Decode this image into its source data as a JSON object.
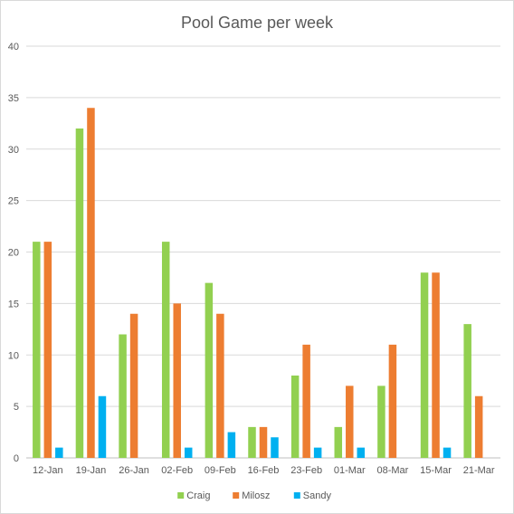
{
  "chart_data": {
    "type": "bar",
    "title": "Pool Game per week",
    "xlabel": "",
    "ylabel": "",
    "categories": [
      "12-Jan",
      "19-Jan",
      "26-Jan",
      "02-Feb",
      "09-Feb",
      "16-Feb",
      "23-Feb",
      "01-Mar",
      "08-Mar",
      "15-Mar",
      "21-Mar"
    ],
    "series": [
      {
        "name": "Craig",
        "color": "#92d050",
        "values": [
          21,
          32,
          12,
          21,
          17,
          3,
          8,
          3,
          7,
          18,
          13
        ]
      },
      {
        "name": "Milosz",
        "color": "#ed7d31",
        "values": [
          21,
          34,
          14,
          15,
          14,
          3,
          11,
          7,
          11,
          18,
          6
        ]
      },
      {
        "name": "Sandy",
        "color": "#00b0f0",
        "values": [
          1,
          6,
          0,
          1,
          2.5,
          2,
          1,
          1,
          0,
          1,
          0
        ]
      }
    ],
    "ylim": [
      0,
      40
    ],
    "yticks": [
      0,
      5,
      10,
      15,
      20,
      25,
      30,
      35,
      40
    ],
    "grid": true,
    "legend_position": "bottom"
  }
}
